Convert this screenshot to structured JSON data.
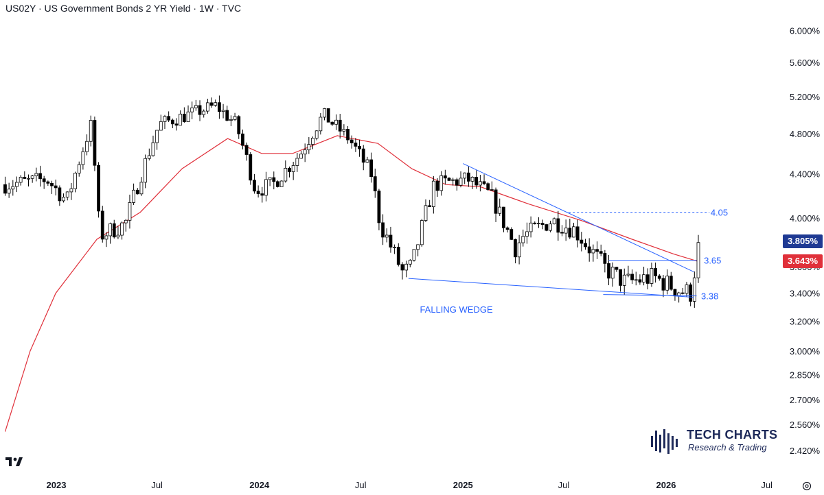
{
  "header": {
    "title": "US02Y · US Government Bonds 2 YR Yield · 1W · TVC"
  },
  "chart_data": {
    "type": "candlestick",
    "title": "US02Y · US Government Bonds 2 YR Yield · 1W · TVC",
    "y_axis_scale": "log",
    "ylim": [
      2.4,
      6.2
    ],
    "y_ticks": [
      "6.000%",
      "5.600%",
      "5.200%",
      "4.800%",
      "4.400%",
      "4.000%",
      "3.600%",
      "3.400%",
      "3.200%",
      "3.000%",
      "2.850%",
      "2.700%",
      "2.560%",
      "2.420%"
    ],
    "x_ticks": [
      "2023",
      "Jul",
      "2024",
      "Jul",
      "2025",
      "Jul",
      "2026",
      "Jul"
    ],
    "price_labels": {
      "last": {
        "text": "3.805%",
        "value": 3.805,
        "color": "#1f3a93"
      },
      "ma": {
        "text": "3.643%",
        "value": 3.643,
        "color": "#e0303a"
      }
    },
    "annotations": [
      {
        "text": "4.05",
        "value": 4.05
      },
      {
        "text": "3.65",
        "value": 3.65
      },
      {
        "text": "3.38",
        "value": 3.38
      },
      {
        "text": "FALLING WEDGE"
      }
    ],
    "candle_anchors": [
      {
        "date": "2022-10-01",
        "value": 4.3
      },
      {
        "date": "2022-12-15",
        "value": 4.35
      },
      {
        "date": "2023-01-20",
        "value": 4.15
      },
      {
        "date": "2023-03-05",
        "value": 4.9
      },
      {
        "date": "2023-03-20",
        "value": 3.85
      },
      {
        "date": "2023-05-05",
        "value": 3.95
      },
      {
        "date": "2023-07-05",
        "value": 4.9
      },
      {
        "date": "2023-10-15",
        "value": 5.1
      },
      {
        "date": "2023-11-20",
        "value": 4.9
      },
      {
        "date": "2023-12-25",
        "value": 4.25
      },
      {
        "date": "2024-01-25",
        "value": 4.3
      },
      {
        "date": "2024-03-15",
        "value": 4.6
      },
      {
        "date": "2024-04-25",
        "value": 5.0
      },
      {
        "date": "2024-06-10",
        "value": 4.75
      },
      {
        "date": "2024-07-20",
        "value": 4.4
      },
      {
        "date": "2024-08-05",
        "value": 3.95
      },
      {
        "date": "2024-09-15",
        "value": 3.55
      },
      {
        "date": "2024-10-01",
        "value": 3.6
      },
      {
        "date": "2024-11-10",
        "value": 4.3
      },
      {
        "date": "2025-01-10",
        "value": 4.35
      },
      {
        "date": "2025-02-20",
        "value": 4.2
      },
      {
        "date": "2025-04-05",
        "value": 3.75
      },
      {
        "date": "2025-04-20",
        "value": 3.85
      },
      {
        "date": "2025-06-10",
        "value": 3.98
      },
      {
        "date": "2025-07-20",
        "value": 3.9
      },
      {
        "date": "2025-09-15",
        "value": 3.58
      },
      {
        "date": "2025-10-20",
        "value": 3.48
      },
      {
        "date": "2025-12-10",
        "value": 3.52
      },
      {
        "date": "2026-01-25",
        "value": 3.42
      },
      {
        "date": "2026-02-15",
        "value": 3.4
      },
      {
        "date": "2026-03-01",
        "value": 3.78
      }
    ],
    "moving_average": [
      {
        "date": "2022-10-01",
        "value": 2.52
      },
      {
        "date": "2022-11-15",
        "value": 3.0
      },
      {
        "date": "2022-12-31",
        "value": 3.4
      },
      {
        "date": "2023-03-15",
        "value": 3.82
      },
      {
        "date": "2023-06-01",
        "value": 4.05
      },
      {
        "date": "2023-08-15",
        "value": 4.45
      },
      {
        "date": "2023-11-05",
        "value": 4.75
      },
      {
        "date": "2024-01-05",
        "value": 4.6
      },
      {
        "date": "2024-03-01",
        "value": 4.6
      },
      {
        "date": "2024-05-20",
        "value": 4.78
      },
      {
        "date": "2024-08-01",
        "value": 4.7
      },
      {
        "date": "2024-10-01",
        "value": 4.45
      },
      {
        "date": "2024-12-01",
        "value": 4.3
      },
      {
        "date": "2025-02-01",
        "value": 4.28
      },
      {
        "date": "2025-05-01",
        "value": 4.12
      },
      {
        "date": "2025-08-01",
        "value": 3.98
      },
      {
        "date": "2025-11-01",
        "value": 3.82
      },
      {
        "date": "2026-01-15",
        "value": 3.7
      },
      {
        "date": "2026-03-01",
        "value": 3.64
      }
    ],
    "trendlines": [
      {
        "name": "upper",
        "from": {
          "date": "2025-01-01",
          "value": 4.5
        },
        "to": {
          "date": "2026-02-20",
          "value": 3.56
        }
      },
      {
        "name": "lower",
        "from": {
          "date": "2024-09-25",
          "value": 3.51
        },
        "to": {
          "date": "2026-02-20",
          "value": 3.37
        }
      },
      {
        "name": "resistance",
        "from": {
          "date": "2025-09-20",
          "value": 3.65
        },
        "to": {
          "date": "2026-02-25",
          "value": 3.65
        }
      },
      {
        "name": "support",
        "from": {
          "date": "2025-09-10",
          "value": 3.39
        },
        "to": {
          "date": "2026-02-25",
          "value": 3.38
        }
      },
      {
        "name": "target",
        "from": {
          "date": "2025-07-10",
          "value": 4.05
        },
        "to": {
          "date": "2026-03-20",
          "value": 4.05
        },
        "dashed": true
      }
    ],
    "colors": {
      "up": "#ffffff",
      "down": "#000000",
      "wick": "#000000",
      "ma": "#e0303a",
      "lines": "#2962ff",
      "label": "#2962ff"
    }
  },
  "branding": {
    "logo_name": "tech-charts-logo",
    "title": "TECH CHARTS",
    "subtitle": "Research & Trading",
    "platform_icon": "tradingview-logo",
    "settings_icon": "gear-icon"
  }
}
